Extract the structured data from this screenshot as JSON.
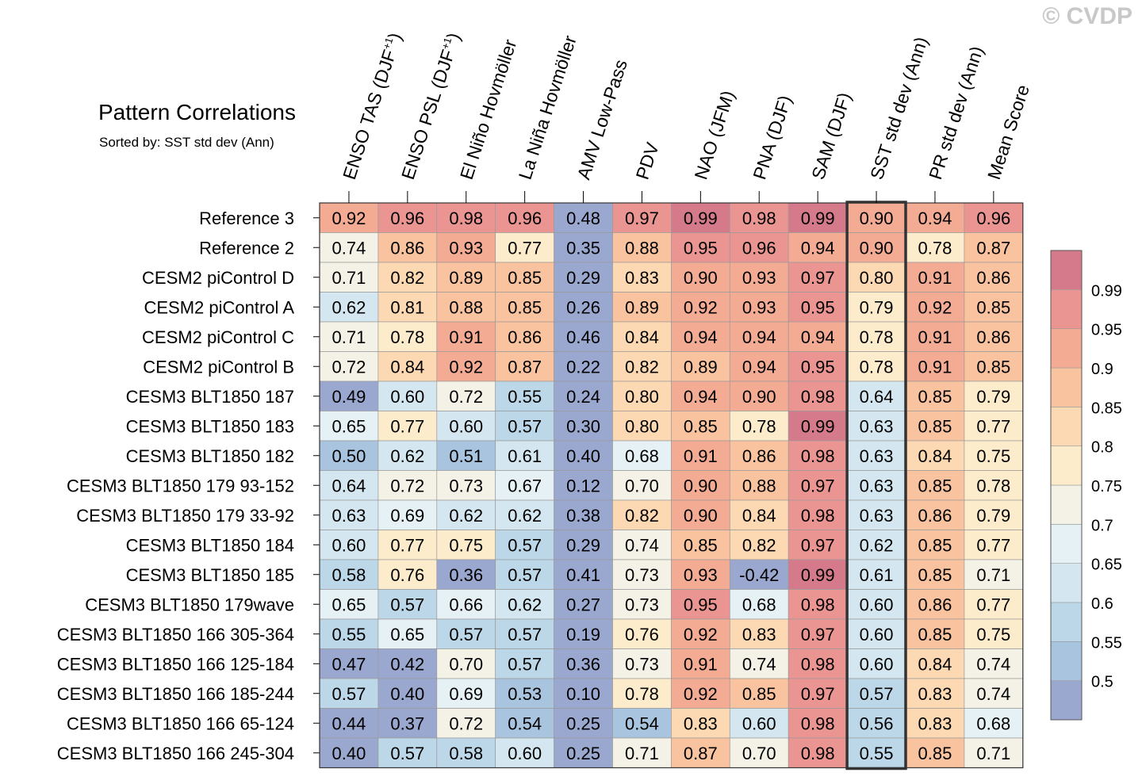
{
  "watermark": "© CVDP",
  "chart_data": {
    "type": "heatmap",
    "title": "Pattern Correlations",
    "subtitle": "Sorted by: SST std dev (Ann)",
    "columns": [
      "ENSO TAS (DJF+1)",
      "ENSO PSL (DJF+1)",
      "El Niño Hovmöller",
      "La Niña Hovmöller",
      "AMV Low-Pass",
      "PDV",
      "NAO (JFM)",
      "PNA (DJF)",
      "SAM (DJF)",
      "SST std dev (Ann)",
      "PR std dev (Ann)",
      "Mean Score"
    ],
    "highlighted_column": "SST std dev (Ann)",
    "rows": [
      "Reference 3",
      "Reference 2",
      "CESM2 piControl D",
      "CESM2 piControl A",
      "CESM2 piControl C",
      "CESM2 piControl B",
      "CESM3 BLT1850 187",
      "CESM3 BLT1850 183",
      "CESM3 BLT1850 182",
      "CESM3 BLT1850 179 93-152",
      "CESM3 BLT1850 179 33-92",
      "CESM3 BLT1850 184",
      "CESM3 BLT1850 185",
      "CESM3 BLT1850 179wave",
      "CESM3 BLT1850 166 305-364",
      "CESM3 BLT1850 166 125-184",
      "CESM3 BLT1850 166 185-244",
      "CESM3 BLT1850 166 65-124",
      "CESM3 BLT1850 166 245-304"
    ],
    "values": [
      [
        "0.92",
        "0.96",
        "0.98",
        "0.96",
        "0.48",
        "0.97",
        "0.99",
        "0.98",
        "0.99",
        "0.90",
        "0.94",
        "0.96"
      ],
      [
        "0.74",
        "0.86",
        "0.93",
        "0.77",
        "0.35",
        "0.88",
        "0.95",
        "0.96",
        "0.94",
        "0.90",
        "0.78",
        "0.87"
      ],
      [
        "0.71",
        "0.82",
        "0.89",
        "0.85",
        "0.29",
        "0.83",
        "0.90",
        "0.93",
        "0.97",
        "0.80",
        "0.91",
        "0.86"
      ],
      [
        "0.62",
        "0.81",
        "0.88",
        "0.85",
        "0.26",
        "0.89",
        "0.92",
        "0.93",
        "0.95",
        "0.79",
        "0.92",
        "0.85"
      ],
      [
        "0.71",
        "0.78",
        "0.91",
        "0.86",
        "0.46",
        "0.84",
        "0.94",
        "0.94",
        "0.94",
        "0.78",
        "0.91",
        "0.86"
      ],
      [
        "0.72",
        "0.84",
        "0.92",
        "0.87",
        "0.22",
        "0.82",
        "0.89",
        "0.94",
        "0.95",
        "0.78",
        "0.91",
        "0.85"
      ],
      [
        "0.49",
        "0.60",
        "0.72",
        "0.55",
        "0.24",
        "0.80",
        "0.94",
        "0.90",
        "0.98",
        "0.64",
        "0.85",
        "0.79"
      ],
      [
        "0.65",
        "0.77",
        "0.60",
        "0.57",
        "0.30",
        "0.80",
        "0.85",
        "0.78",
        "0.99",
        "0.63",
        "0.85",
        "0.77"
      ],
      [
        "0.50",
        "0.62",
        "0.51",
        "0.61",
        "0.40",
        "0.68",
        "0.91",
        "0.86",
        "0.98",
        "0.63",
        "0.84",
        "0.75"
      ],
      [
        "0.64",
        "0.72",
        "0.73",
        "0.67",
        "0.12",
        "0.70",
        "0.90",
        "0.88",
        "0.97",
        "0.63",
        "0.85",
        "0.78"
      ],
      [
        "0.63",
        "0.69",
        "0.62",
        "0.62",
        "0.38",
        "0.82",
        "0.90",
        "0.84",
        "0.98",
        "0.63",
        "0.86",
        "0.79"
      ],
      [
        "0.60",
        "0.77",
        "0.75",
        "0.57",
        "0.29",
        "0.74",
        "0.85",
        "0.82",
        "0.97",
        "0.62",
        "0.85",
        "0.77"
      ],
      [
        "0.58",
        "0.76",
        "0.36",
        "0.57",
        "0.41",
        "0.73",
        "0.93",
        "-0.42",
        "0.99",
        "0.61",
        "0.85",
        "0.71"
      ],
      [
        "0.65",
        "0.57",
        "0.66",
        "0.62",
        "0.27",
        "0.73",
        "0.95",
        "0.68",
        "0.98",
        "0.60",
        "0.86",
        "0.77"
      ],
      [
        "0.55",
        "0.65",
        "0.57",
        "0.57",
        "0.19",
        "0.76",
        "0.92",
        "0.83",
        "0.97",
        "0.60",
        "0.85",
        "0.75"
      ],
      [
        "0.47",
        "0.42",
        "0.70",
        "0.57",
        "0.36",
        "0.73",
        "0.91",
        "0.74",
        "0.98",
        "0.60",
        "0.84",
        "0.74"
      ],
      [
        "0.57",
        "0.40",
        "0.69",
        "0.53",
        "0.10",
        "0.78",
        "0.92",
        "0.85",
        "0.97",
        "0.57",
        "0.83",
        "0.74"
      ],
      [
        "0.44",
        "0.37",
        "0.72",
        "0.54",
        "0.25",
        "0.54",
        "0.83",
        "0.60",
        "0.98",
        "0.56",
        "0.83",
        "0.68"
      ],
      [
        "0.40",
        "0.57",
        "0.58",
        "0.60",
        "0.25",
        "0.71",
        "0.87",
        "0.70",
        "0.98",
        "0.55",
        "0.85",
        "0.71"
      ]
    ],
    "colorbar": {
      "levels": [
        "0.5",
        "0.55",
        "0.6",
        "0.65",
        "0.7",
        "0.75",
        "0.8",
        "0.85",
        "0.9",
        "0.95",
        "0.99"
      ],
      "colors": [
        "#9aa8d0",
        "#a9c4de",
        "#bcd7e8",
        "#d4e7f0",
        "#e6f1f5",
        "#f4f2e6",
        "#fceccb",
        "#fcd9b2",
        "#f9c39f",
        "#f3ab94",
        "#eb9592",
        "#d57a8a"
      ]
    }
  }
}
